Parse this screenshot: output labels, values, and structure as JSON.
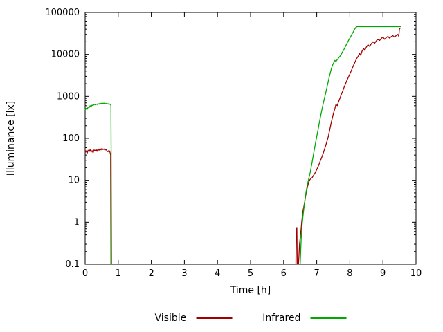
{
  "page": {
    "background": "#ffffff",
    "text_color": "#000000"
  },
  "axes": {
    "ylabel": "Illuminance [lx]",
    "xlabel": "Time [h]"
  },
  "chart_data": {
    "type": "line",
    "title": "",
    "xlabel": "Time [h]",
    "ylabel": "Illuminance [lx]",
    "xlim": [
      0,
      10
    ],
    "ylim": [
      0.1,
      100000
    ],
    "y_scale": "log",
    "grid": false,
    "legend_position": "bottom-center",
    "xticks": [
      0,
      1,
      2,
      3,
      4,
      5,
      6,
      7,
      8,
      9,
      10
    ],
    "xtick_labels": [
      "0",
      "1",
      "2",
      "3",
      "4",
      "5",
      "6",
      "7",
      "8",
      "9",
      "10"
    ],
    "yticks": [
      0.1,
      1,
      10,
      100,
      1000,
      10000,
      100000
    ],
    "ytick_labels": [
      "0.1",
      "1",
      "10",
      "100",
      "1000",
      "10000",
      "100000"
    ],
    "series": [
      {
        "name": "Visible",
        "color": "#a00000",
        "segments": [
          [
            [
              0,
              46
            ],
            [
              0.03,
              50
            ],
            [
              0.06,
              44
            ],
            [
              0.09,
              52
            ],
            [
              0.12,
              48
            ],
            [
              0.15,
              54
            ],
            [
              0.18,
              47
            ],
            [
              0.21,
              51
            ],
            [
              0.24,
              45
            ],
            [
              0.27,
              53
            ],
            [
              0.3,
              50
            ],
            [
              0.33,
              55
            ],
            [
              0.36,
              49
            ],
            [
              0.39,
              56
            ],
            [
              0.42,
              52
            ],
            [
              0.45,
              57
            ],
            [
              0.48,
              53
            ],
            [
              0.51,
              58
            ],
            [
              0.54,
              54
            ],
            [
              0.57,
              56
            ],
            [
              0.6,
              52
            ],
            [
              0.63,
              55
            ],
            [
              0.66,
              50
            ],
            [
              0.69,
              48
            ],
            [
              0.72,
              52
            ],
            [
              0.75,
              47
            ],
            [
              0.77,
              40
            ],
            [
              0.78,
              0.1
            ]
          ],
          [
            [
              6.37,
              0.1
            ],
            [
              6.38,
              0.7
            ],
            [
              6.4,
              0.75
            ],
            [
              6.41,
              0.1
            ]
          ],
          [
            [
              6.45,
              0.1
            ],
            [
              6.48,
              0.3
            ],
            [
              6.52,
              0.6
            ],
            [
              6.55,
              1.1
            ],
            [
              6.58,
              1.8
            ],
            [
              6.62,
              2.6
            ],
            [
              6.66,
              4
            ],
            [
              6.7,
              6
            ],
            [
              6.74,
              8
            ],
            [
              6.78,
              10
            ],
            [
              6.82,
              11
            ],
            [
              6.86,
              11.5
            ],
            [
              6.9,
              13
            ],
            [
              6.95,
              15
            ],
            [
              7.0,
              18
            ],
            [
              7.05,
              22
            ],
            [
              7.1,
              28
            ],
            [
              7.15,
              35
            ],
            [
              7.2,
              45
            ],
            [
              7.25,
              60
            ],
            [
              7.3,
              80
            ],
            [
              7.35,
              110
            ],
            [
              7.4,
              170
            ],
            [
              7.45,
              260
            ],
            [
              7.5,
              380
            ],
            [
              7.55,
              520
            ],
            [
              7.58,
              640
            ],
            [
              7.62,
              600
            ],
            [
              7.66,
              750
            ],
            [
              7.7,
              900
            ],
            [
              7.74,
              1100
            ],
            [
              7.78,
              1300
            ],
            [
              7.82,
              1600
            ],
            [
              7.86,
              1900
            ],
            [
              7.9,
              2300
            ],
            [
              7.95,
              2800
            ],
            [
              8.0,
              3400
            ],
            [
              8.05,
              4200
            ],
            [
              8.1,
              5200
            ],
            [
              8.15,
              6400
            ],
            [
              8.2,
              7800
            ],
            [
              8.25,
              9000
            ],
            [
              8.3,
              10500
            ],
            [
              8.33,
              9500
            ],
            [
              8.37,
              12000
            ],
            [
              8.42,
              14000
            ],
            [
              8.45,
              12500
            ],
            [
              8.5,
              15000
            ],
            [
              8.55,
              17000
            ],
            [
              8.6,
              15500
            ],
            [
              8.65,
              18000
            ],
            [
              8.7,
              20000
            ],
            [
              8.75,
              18500
            ],
            [
              8.8,
              21000
            ],
            [
              8.85,
              23000
            ],
            [
              8.9,
              21500
            ],
            [
              8.95,
              24000
            ],
            [
              9.0,
              26000
            ],
            [
              9.05,
              23000
            ],
            [
              9.1,
              25000
            ],
            [
              9.15,
              27000
            ],
            [
              9.2,
              24500
            ],
            [
              9.25,
              26500
            ],
            [
              9.3,
              28000
            ],
            [
              9.35,
              26000
            ],
            [
              9.4,
              28000
            ],
            [
              9.45,
              30000
            ],
            [
              9.48,
              27000
            ],
            [
              9.5,
              42000
            ],
            [
              9.52,
              40000
            ]
          ]
        ]
      },
      {
        "name": "Infrared",
        "color": "#00a800",
        "segments": [
          [
            [
              0,
              470
            ],
            [
              0.03,
              520
            ],
            [
              0.06,
              490
            ],
            [
              0.09,
              560
            ],
            [
              0.12,
              540
            ],
            [
              0.15,
              600
            ],
            [
              0.18,
              570
            ],
            [
              0.21,
              620
            ],
            [
              0.24,
              600
            ],
            [
              0.27,
              650
            ],
            [
              0.3,
              630
            ],
            [
              0.33,
              660
            ],
            [
              0.36,
              640
            ],
            [
              0.39,
              670
            ],
            [
              0.42,
              650
            ],
            [
              0.45,
              690
            ],
            [
              0.48,
              660
            ],
            [
              0.51,
              700
            ],
            [
              0.54,
              670
            ],
            [
              0.57,
              690
            ],
            [
              0.6,
              660
            ],
            [
              0.63,
              680
            ],
            [
              0.66,
              650
            ],
            [
              0.69,
              670
            ],
            [
              0.72,
              640
            ],
            [
              0.75,
              660
            ],
            [
              0.78,
              620
            ],
            [
              0.8,
              0.1
            ]
          ],
          [
            [
              6.5,
              0.1
            ],
            [
              6.53,
              0.4
            ],
            [
              6.56,
              0.9
            ],
            [
              6.6,
              1.8
            ],
            [
              6.64,
              3.2
            ],
            [
              6.68,
              5.5
            ],
            [
              6.72,
              8
            ],
            [
              6.76,
              11
            ],
            [
              6.8,
              15
            ],
            [
              6.84,
              22
            ],
            [
              6.88,
              33
            ],
            [
              6.92,
              50
            ],
            [
              6.96,
              75
            ],
            [
              7.0,
              110
            ],
            [
              7.04,
              160
            ],
            [
              7.08,
              240
            ],
            [
              7.12,
              350
            ],
            [
              7.16,
              500
            ],
            [
              7.2,
              700
            ],
            [
              7.24,
              950
            ],
            [
              7.28,
              1300
            ],
            [
              7.32,
              1800
            ],
            [
              7.36,
              2500
            ],
            [
              7.4,
              3400
            ],
            [
              7.44,
              4500
            ],
            [
              7.48,
              5600
            ],
            [
              7.52,
              6500
            ],
            [
              7.55,
              7200
            ],
            [
              7.58,
              6800
            ],
            [
              7.62,
              7500
            ],
            [
              7.66,
              8200
            ],
            [
              7.7,
              9000
            ],
            [
              7.74,
              10000
            ],
            [
              7.78,
              11500
            ],
            [
              7.82,
              13000
            ],
            [
              7.86,
              15000
            ],
            [
              7.9,
              17500
            ],
            [
              7.94,
              20000
            ],
            [
              7.98,
              23000
            ],
            [
              8.02,
              26000
            ],
            [
              8.06,
              30000
            ],
            [
              8.1,
              34000
            ],
            [
              8.14,
              39000
            ],
            [
              8.18,
              44000
            ],
            [
              8.22,
              46000
            ],
            [
              8.3,
              46000
            ],
            [
              8.4,
              46000
            ],
            [
              8.5,
              46000
            ],
            [
              8.6,
              46000
            ],
            [
              8.7,
              46000
            ],
            [
              8.8,
              46000
            ],
            [
              8.9,
              46000
            ],
            [
              9.0,
              46000
            ],
            [
              9.1,
              46000
            ],
            [
              9.2,
              46000
            ],
            [
              9.3,
              46000
            ],
            [
              9.4,
              46000
            ],
            [
              9.5,
              46000
            ],
            [
              9.55,
              46000
            ]
          ]
        ]
      }
    ]
  }
}
